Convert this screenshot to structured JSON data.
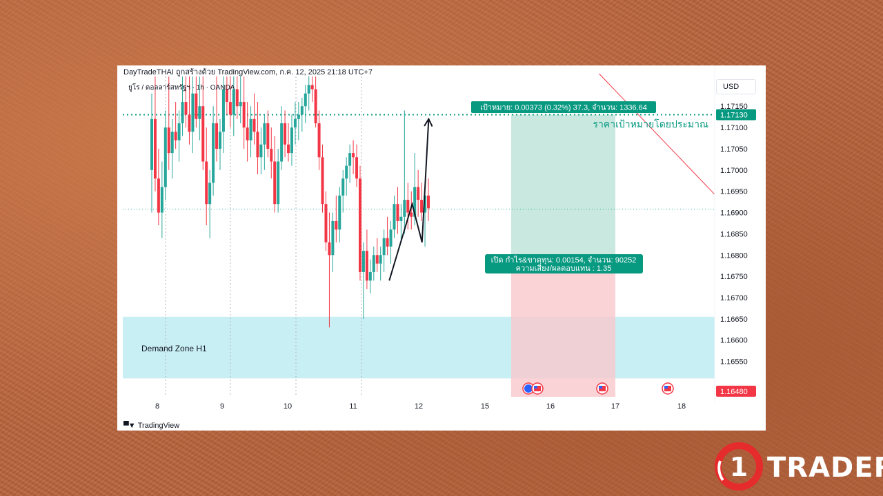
{
  "header": {
    "publisher": "DayTradeTHAI ถูกสร้างด้วย TradingView.com, ก.ค. 12, 2025 21:18 UTC+7",
    "symbol": "ยูโร / ดอลลาร์สหรัฐฯ · 1h · OANDA",
    "currency_button": "USD"
  },
  "footer": {
    "tradingview_logo": "TradingView"
  },
  "brand": {
    "logo_text": "TRADER",
    "logo_digit": "1"
  },
  "colors": {
    "bull": "#26a69a",
    "bear": "#f23645",
    "target_zone": "#b7e2d6",
    "stop_zone": "#f9c8cc",
    "demand_zone": "#c8eff4",
    "target_label": "#089981",
    "trend_line": "#f23645"
  },
  "chart_data": {
    "type": "candlestick",
    "instrument": "ยูโร / ดอลลาร์สหรัฐฯ",
    "timeframe": "1h",
    "source": "OANDA",
    "x_ticks": [
      "8",
      "9",
      "10",
      "11",
      "12",
      "15",
      "16",
      "17",
      "18"
    ],
    "y_ticks": [
      "1.17150",
      "1.17100",
      "1.17050",
      "1.17000",
      "1.16950",
      "1.16900",
      "1.16850",
      "1.16800",
      "1.16750",
      "1.16700",
      "1.16650",
      "1.16600",
      "1.16550"
    ],
    "ylim": [
      1.1647,
      1.1722
    ],
    "price_badges": [
      {
        "label": "1.17130",
        "value": 1.1713,
        "color": "#089981"
      },
      {
        "label": "1.16480",
        "value": 1.1648,
        "color": "#f23645"
      }
    ],
    "candles": [
      [
        1.17,
        1.1718,
        1.169,
        1.1712
      ],
      [
        1.1712,
        1.1722,
        1.1695,
        1.1698
      ],
      [
        1.1698,
        1.1705,
        1.1687,
        1.169
      ],
      [
        1.169,
        1.1702,
        1.1684,
        1.1696
      ],
      [
        1.1696,
        1.1714,
        1.1693,
        1.171
      ],
      [
        1.171,
        1.1722,
        1.17,
        1.1704
      ],
      [
        1.1704,
        1.1712,
        1.1698,
        1.1709
      ],
      [
        1.1709,
        1.1716,
        1.1705,
        1.1707
      ],
      [
        1.1707,
        1.1714,
        1.1702,
        1.1711
      ],
      [
        1.1711,
        1.1722,
        1.1708,
        1.1716
      ],
      [
        1.1716,
        1.1722,
        1.171,
        1.1713
      ],
      [
        1.1713,
        1.1722,
        1.1706,
        1.1709
      ],
      [
        1.1709,
        1.1722,
        1.1704,
        1.1718
      ],
      [
        1.1718,
        1.1722,
        1.171,
        1.1712
      ],
      [
        1.1712,
        1.1722,
        1.1707,
        1.1715
      ],
      [
        1.1715,
        1.1722,
        1.17,
        1.1702
      ],
      [
        1.1702,
        1.171,
        1.1687,
        1.1692
      ],
      [
        1.1692,
        1.17,
        1.1684,
        1.1697
      ],
      [
        1.1697,
        1.1715,
        1.1694,
        1.1711
      ],
      [
        1.1711,
        1.1722,
        1.1702,
        1.1705
      ],
      [
        1.1705,
        1.1712,
        1.17,
        1.1709
      ],
      [
        1.1709,
        1.1722,
        1.1704,
        1.1719
      ],
      [
        1.1719,
        1.1722,
        1.1713,
        1.1716
      ],
      [
        1.1716,
        1.1722,
        1.171,
        1.1713
      ],
      [
        1.1713,
        1.1722,
        1.1708,
        1.1719
      ],
      [
        1.1719,
        1.1722,
        1.1712,
        1.1715
      ],
      [
        1.1715,
        1.1722,
        1.1711,
        1.1716
      ],
      [
        1.1716,
        1.1722,
        1.1705,
        1.171
      ],
      [
        1.171,
        1.1716,
        1.1702,
        1.1707
      ],
      [
        1.1707,
        1.1715,
        1.1703,
        1.1712
      ],
      [
        1.1712,
        1.1718,
        1.1706,
        1.1709
      ],
      [
        1.1709,
        1.1716,
        1.1699,
        1.1703
      ],
      [
        1.1703,
        1.171,
        1.1699,
        1.1706
      ],
      [
        1.1706,
        1.1713,
        1.17,
        1.1711
      ],
      [
        1.1711,
        1.1714,
        1.1703,
        1.1705
      ],
      [
        1.1705,
        1.171,
        1.1698,
        1.1702
      ],
      [
        1.1702,
        1.1708,
        1.169,
        1.1692
      ],
      [
        1.1692,
        1.1705,
        1.169,
        1.1702
      ],
      [
        1.1702,
        1.1715,
        1.17,
        1.1711
      ],
      [
        1.1711,
        1.1714,
        1.1703,
        1.1706
      ],
      [
        1.1706,
        1.1711,
        1.1702,
        1.1704
      ],
      [
        1.1704,
        1.1713,
        1.1701,
        1.171
      ],
      [
        1.171,
        1.1716,
        1.1706,
        1.1712
      ],
      [
        1.1712,
        1.1716,
        1.1707,
        1.1713
      ],
      [
        1.1713,
        1.1717,
        1.1709,
        1.1715
      ],
      [
        1.1715,
        1.172,
        1.1711,
        1.1718
      ],
      [
        1.1718,
        1.1722,
        1.1714,
        1.172
      ],
      [
        1.172,
        1.1722,
        1.1716,
        1.1719
      ],
      [
        1.1719,
        1.1722,
        1.171,
        1.1711
      ],
      [
        1.1711,
        1.1714,
        1.17,
        1.1703
      ],
      [
        1.1703,
        1.1706,
        1.169,
        1.1692
      ],
      [
        1.1692,
        1.1695,
        1.1681,
        1.1683
      ],
      [
        1.1683,
        1.169,
        1.1663,
        1.168
      ],
      [
        1.168,
        1.169,
        1.1676,
        1.1688
      ],
      [
        1.1688,
        1.1694,
        1.1683,
        1.1686
      ],
      [
        1.1686,
        1.1696,
        1.1683,
        1.1694
      ],
      [
        1.1694,
        1.17,
        1.169,
        1.1698
      ],
      [
        1.1698,
        1.1703,
        1.1694,
        1.1701
      ],
      [
        1.1701,
        1.1706,
        1.1697,
        1.1704
      ],
      [
        1.1704,
        1.1707,
        1.1699,
        1.1703
      ],
      [
        1.1703,
        1.1706,
        1.1696,
        1.1698
      ],
      [
        1.1698,
        1.1701,
        1.1674,
        1.1676
      ],
      [
        1.1676,
        1.1683,
        1.1665,
        1.1681
      ],
      [
        1.1681,
        1.1686,
        1.1672,
        1.1674
      ],
      [
        1.1674,
        1.1679,
        1.1671,
        1.1676
      ],
      [
        1.1676,
        1.1682,
        1.1674,
        1.168
      ],
      [
        1.168,
        1.1684,
        1.1676,
        1.1678
      ],
      [
        1.1678,
        1.1682,
        1.1674,
        1.168
      ],
      [
        1.168,
        1.1686,
        1.1676,
        1.1684
      ],
      [
        1.1684,
        1.1689,
        1.168,
        1.1682
      ],
      [
        1.1682,
        1.1688,
        1.1678,
        1.1686
      ],
      [
        1.1686,
        1.1694,
        1.1684,
        1.1692
      ],
      [
        1.1692,
        1.1696,
        1.1685,
        1.1688
      ],
      [
        1.1688,
        1.1692,
        1.1683,
        1.1689
      ],
      [
        1.1689,
        1.1714,
        1.1685,
        1.1693
      ],
      [
        1.1693,
        1.1697,
        1.1686,
        1.169
      ],
      [
        1.169,
        1.1695,
        1.1686,
        1.1689
      ],
      [
        1.1689,
        1.1704,
        1.1687,
        1.1696
      ],
      [
        1.1696,
        1.17,
        1.1689,
        1.1693
      ],
      [
        1.1693,
        1.1697,
        1.1688,
        1.169
      ],
      [
        1.169,
        1.1696,
        1.1682,
        1.1694
      ],
      [
        1.1694,
        1.1698,
        1.1688,
        1.1691
      ]
    ],
    "overlays": {
      "horizontal_dotted_target": 1.1713,
      "horizontal_dotted_entry": 1.16908,
      "vertical_dotted_x": [
        "8",
        "9",
        "10",
        "11"
      ],
      "demand_zone": {
        "label": "Demand Zone H1",
        "top": 1.16655,
        "bottom": 1.1651
      },
      "target_zone": {
        "from": "15.4",
        "to": "17",
        "top": 1.1713,
        "bottom": 1.1676
      },
      "stop_zone": {
        "from": "15.4",
        "to": "17",
        "top": 1.1676,
        "bottom": 1.1647
      },
      "target_label": "เป้าหมาย: 0.00373 (0.32%) 37.3, จำนวน: 1336.64",
      "entry_label_line1": "เปิด กำไร&ขาดทุน: 0.00154, จำนวน: 90252",
      "entry_label_line2": "ความเสี่ยง/ผลตอบแทน : 1.35",
      "target_text": "ราคาเป้าหมายโดยประมาณ",
      "projection_path": [
        [
          "11.55",
          1.1674
        ],
        [
          "11.9",
          1.1692
        ],
        [
          "12.15",
          1.1683
        ],
        [
          "12.45",
          1.1712
        ]
      ],
      "trend_line": [
        [
          "16.75",
          1.1722
        ],
        [
          "18.5",
          1.1695
        ]
      ],
      "event_icons": [
        "eu-flag-icon",
        "us-flag-icon",
        "us-flag-icon",
        "us-flag-icon"
      ]
    }
  }
}
